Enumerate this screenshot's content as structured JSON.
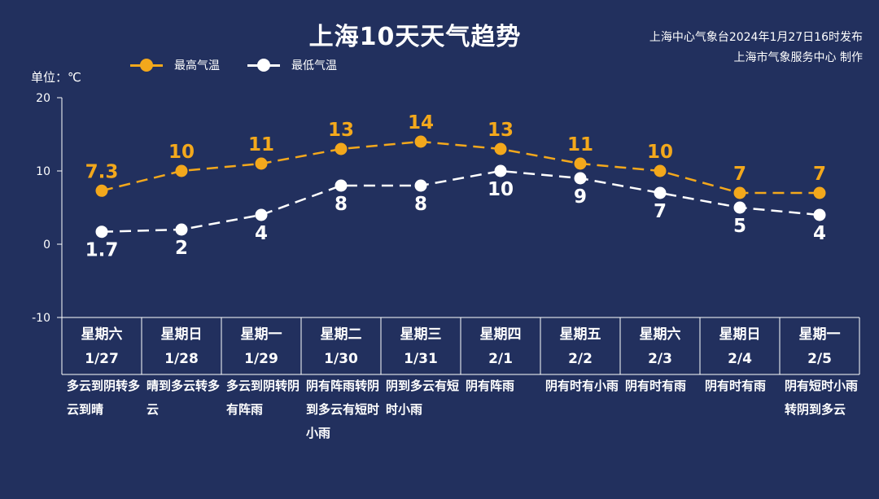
{
  "header": {
    "title": "上海10天天气趋势",
    "source_line1": "上海中心气象台2024年1月27日16时发布",
    "source_line2": "上海市气象服务中心 制作"
  },
  "unit_label": "单位：℃",
  "colors": {
    "background": "#22305e",
    "high": "#f3a81c",
    "low": "#ffffff",
    "axis": "#ffffff"
  },
  "chart_data": {
    "type": "line",
    "ylim": [
      -10,
      20
    ],
    "yticks": [
      -10,
      0,
      10,
      20
    ],
    "categories": [
      "星期六",
      "星期日",
      "星期一",
      "星期二",
      "星期三",
      "星期四",
      "星期五",
      "星期六",
      "星期日",
      "星期一"
    ],
    "dates": [
      "1/27",
      "1/28",
      "1/29",
      "1/30",
      "1/31",
      "2/1",
      "2/2",
      "2/3",
      "2/4",
      "2/5"
    ],
    "series": [
      {
        "name": "最高气温",
        "values": [
          7.3,
          10,
          11,
          13,
          14,
          13,
          11,
          10,
          7,
          7
        ],
        "labels": [
          "7.3",
          "10",
          "11",
          "13",
          "14",
          "13",
          "11",
          "10",
          "7",
          "7"
        ]
      },
      {
        "name": "最低气温",
        "values": [
          1.7,
          2,
          4,
          8,
          8,
          10,
          9,
          7,
          5,
          4
        ],
        "labels": [
          "1.7",
          "2",
          "4",
          "8",
          "8",
          "10",
          "9",
          "7",
          "5",
          "4"
        ]
      }
    ],
    "legend": "top-left",
    "grid": false
  },
  "days": [
    {
      "weekday": "星期六",
      "date": "1/27",
      "weather": "多云到阴转多云到晴"
    },
    {
      "weekday": "星期日",
      "date": "1/28",
      "weather": "晴到多云转多云"
    },
    {
      "weekday": "星期一",
      "date": "1/29",
      "weather": "多云到阴转阴有阵雨"
    },
    {
      "weekday": "星期二",
      "date": "1/30",
      "weather": "阴有阵雨转阴到多云有短时小雨"
    },
    {
      "weekday": "星期三",
      "date": "1/31",
      "weather": "阴到多云有短时小雨"
    },
    {
      "weekday": "星期四",
      "date": "2/1",
      "weather": "阴有阵雨"
    },
    {
      "weekday": "星期五",
      "date": "2/2",
      "weather": "阴有时有小雨"
    },
    {
      "weekday": "星期六",
      "date": "2/3",
      "weather": "阴有时有雨"
    },
    {
      "weekday": "星期日",
      "date": "2/4",
      "weather": "阴有时有雨"
    },
    {
      "weekday": "星期一",
      "date": "2/5",
      "weather": "阴有短时小雨转阴到多云"
    }
  ]
}
